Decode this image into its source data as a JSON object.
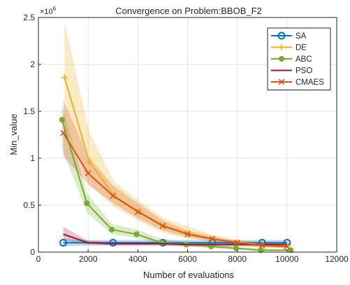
{
  "chart_data": {
    "type": "line",
    "title": "Convergence on Problem:BBOB_F2",
    "xlabel": "Number of evaluations",
    "ylabel": "Min_value",
    "y_exponent_label": "×10",
    "y_exponent_power": "6",
    "xlim": [
      0,
      12000
    ],
    "ylim": [
      0,
      2.5
    ],
    "xticks": [
      0,
      2000,
      4000,
      6000,
      8000,
      10000,
      12000
    ],
    "yticks": [
      0,
      0.5,
      1,
      1.5,
      2,
      2.5
    ],
    "xtick_labels": [
      "0",
      "2000",
      "4000",
      "6000",
      "8000",
      "10000",
      "12000"
    ],
    "ytick_labels": [
      "0",
      "0.5",
      "1",
      "1.5",
      "2",
      "2.5"
    ],
    "grid": true,
    "legend_position": "top-right",
    "series": [
      {
        "name": "SA",
        "color": "#0072BD",
        "marker": "circle",
        "x": [
          1000,
          2000,
          3000,
          4000,
          5000,
          6000,
          7000,
          8000,
          9000,
          10000
        ],
        "y": [
          0.1,
          0.1,
          0.1,
          0.1,
          0.1,
          0.1,
          0.1,
          0.1,
          0.1,
          0.1
        ],
        "lower": [
          0.06,
          0.07,
          0.07,
          0.07,
          0.07,
          0.07,
          0.07,
          0.07,
          0.07,
          0.07
        ],
        "upper": [
          0.14,
          0.13,
          0.13,
          0.13,
          0.13,
          0.13,
          0.13,
          0.13,
          0.13,
          0.13
        ],
        "marker_x": [
          1000,
          3000,
          5000,
          7000,
          9000,
          10000
        ]
      },
      {
        "name": "DE",
        "color": "#EDB120",
        "marker": "plus",
        "x": [
          1050,
          2050,
          3050,
          4050,
          5050,
          6050,
          7050,
          8050,
          9050,
          10050
        ],
        "y": [
          1.86,
          0.96,
          0.6,
          0.43,
          0.28,
          0.2,
          0.14,
          0.1,
          0.08,
          0.07
        ],
        "lower": [
          1.35,
          0.72,
          0.48,
          0.33,
          0.2,
          0.14,
          0.1,
          0.07,
          0.05,
          0.04
        ],
        "upper": [
          2.45,
          1.28,
          0.75,
          0.55,
          0.36,
          0.27,
          0.18,
          0.13,
          0.11,
          0.1
        ]
      },
      {
        "name": "ABC",
        "color": "#77AC30",
        "marker": "dot",
        "x": [
          950,
          1950,
          2950,
          3950,
          4950,
          5950,
          6950,
          7950,
          8950,
          10150
        ],
        "y": [
          1.41,
          0.52,
          0.24,
          0.19,
          0.1,
          0.08,
          0.06,
          0.04,
          0.02,
          0.02
        ],
        "lower": [
          1.1,
          0.42,
          0.19,
          0.15,
          0.08,
          0.06,
          0.04,
          0.03,
          0.01,
          0.01
        ],
        "upper": [
          1.57,
          0.63,
          0.3,
          0.24,
          0.14,
          0.11,
          0.09,
          0.06,
          0.04,
          0.03
        ]
      },
      {
        "name": "PSO",
        "color": "#A2142F",
        "marker": "none",
        "x": [
          1000,
          2000,
          3000,
          4000,
          5000,
          6000,
          7000,
          8000,
          9000,
          10000
        ],
        "y": [
          0.19,
          0.1,
          0.09,
          0.09,
          0.09,
          0.08,
          0.08,
          0.08,
          0.08,
          0.08
        ],
        "lower": [
          0.13,
          0.08,
          0.07,
          0.07,
          0.07,
          0.06,
          0.06,
          0.06,
          0.06,
          0.06
        ],
        "upper": [
          0.27,
          0.12,
          0.11,
          0.11,
          0.11,
          0.1,
          0.1,
          0.1,
          0.1,
          0.1
        ]
      },
      {
        "name": "CMAES",
        "color": "#D95319",
        "marker": "x",
        "x": [
          1000,
          2000,
          3000,
          4000,
          5000,
          6000,
          7000,
          8000,
          9000,
          10000
        ],
        "y": [
          1.27,
          0.84,
          0.6,
          0.43,
          0.28,
          0.19,
          0.14,
          0.1,
          0.07,
          0.06
        ],
        "lower": [
          1.02,
          0.72,
          0.52,
          0.36,
          0.23,
          0.16,
          0.11,
          0.08,
          0.05,
          0.04
        ],
        "upper": [
          1.62,
          1.02,
          0.71,
          0.52,
          0.34,
          0.23,
          0.17,
          0.12,
          0.09,
          0.08
        ]
      }
    ]
  }
}
